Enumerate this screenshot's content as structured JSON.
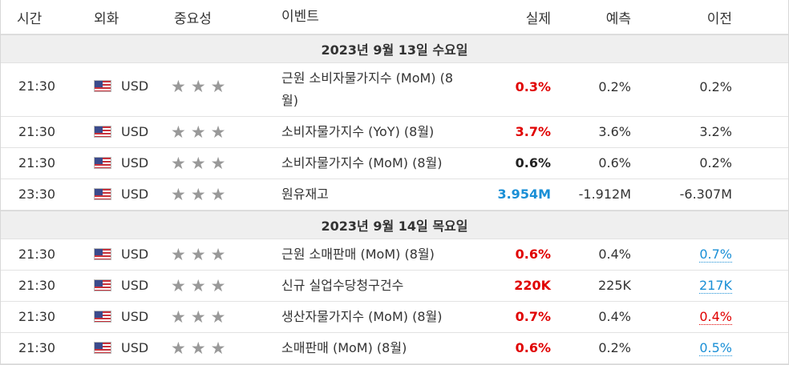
{
  "headers": {
    "time": "시간",
    "currency": "외화",
    "importance": "중요성",
    "event": "이벤트",
    "actual": "실제",
    "forecast": "예측",
    "previous": "이전"
  },
  "star_icon": "★",
  "days": [
    {
      "label": "2023년 9월 13일 수요일",
      "events": [
        {
          "time": "21:30",
          "currency": "USD",
          "event": "근원 소비자물가지수 (MoM) (8월)",
          "actual": "0.3%",
          "actual_color": "red",
          "forecast": "0.2%",
          "previous": "0.2%",
          "previous_style": "plain",
          "tall": true
        },
        {
          "time": "21:30",
          "currency": "USD",
          "event": "소비자물가지수 (YoY) (8월)",
          "actual": "3.7%",
          "actual_color": "red",
          "forecast": "3.6%",
          "previous": "3.2%",
          "previous_style": "plain"
        },
        {
          "time": "21:30",
          "currency": "USD",
          "event": "소비자물가지수 (MoM) (8월)",
          "actual": "0.6%",
          "actual_color": "black",
          "forecast": "0.6%",
          "previous": "0.2%",
          "previous_style": "plain"
        },
        {
          "time": "23:30",
          "currency": "USD",
          "event": "원유재고",
          "actual": "3.954M",
          "actual_color": "blue",
          "forecast": "-1.912M",
          "previous": "-6.307M",
          "previous_style": "plain"
        }
      ]
    },
    {
      "label": "2023년 9월 14일 목요일",
      "events": [
        {
          "time": "21:30",
          "currency": "USD",
          "event": "근원 소매판매 (MoM) (8월)",
          "actual": "0.6%",
          "actual_color": "red",
          "forecast": "0.4%",
          "previous": "0.7%",
          "previous_style": "up-blue"
        },
        {
          "time": "21:30",
          "currency": "USD",
          "event": "신규 실업수당청구건수",
          "actual": "220K",
          "actual_color": "red",
          "forecast": "225K",
          "previous": "217K",
          "previous_style": "up-blue"
        },
        {
          "time": "21:30",
          "currency": "USD",
          "event": "생산자물가지수 (MoM) (8월)",
          "actual": "0.7%",
          "actual_color": "red",
          "forecast": "0.4%",
          "previous": "0.4%",
          "previous_style": "up-red"
        },
        {
          "time": "21:30",
          "currency": "USD",
          "event": "소매판매 (MoM) (8월)",
          "actual": "0.6%",
          "actual_color": "red",
          "forecast": "0.2%",
          "previous": "0.5%",
          "previous_style": "up-blue"
        }
      ]
    }
  ],
  "colors": {
    "red": "#e00000",
    "blue": "#1a8fd6",
    "star": "#999999",
    "day_bg": "#efefef"
  }
}
